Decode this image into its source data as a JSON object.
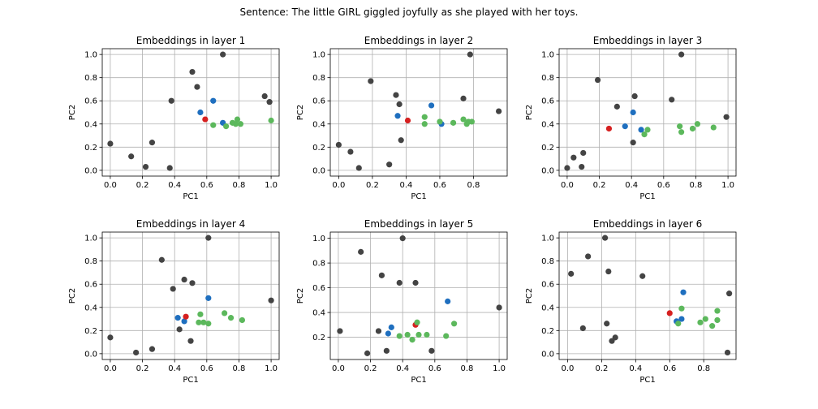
{
  "figure": {
    "suptitle": "Sentence: The little GIRL giggled joyfully as she played with her toys."
  },
  "colors": {
    "other": "#444444",
    "blue": "#1f6fbf",
    "red": "#d62020",
    "green": "#5cb85c"
  },
  "chart_data": [
    {
      "type": "scatter",
      "title": "Embeddings in layer 1",
      "xlabel": "PC1",
      "ylabel": "PC2",
      "xlim": [
        -0.05,
        1.05
      ],
      "ylim": [
        -0.05,
        1.05
      ],
      "xticks": [
        "0.0",
        "0.2",
        "0.4",
        "0.6",
        "0.8",
        "1.0"
      ],
      "yticks": [
        "0.0",
        "0.2",
        "0.4",
        "0.6",
        "0.8",
        "1.0"
      ],
      "grid": true,
      "series": [
        {
          "color": "other",
          "points": [
            [
              0.0,
              0.23
            ],
            [
              0.13,
              0.12
            ],
            [
              0.22,
              0.03
            ],
            [
              0.26,
              0.24
            ],
            [
              0.37,
              0.02
            ],
            [
              0.38,
              0.6
            ],
            [
              0.51,
              0.85
            ],
            [
              0.54,
              0.72
            ],
            [
              0.7,
              1.0
            ],
            [
              0.96,
              0.64
            ],
            [
              0.99,
              0.59
            ]
          ]
        },
        {
          "color": "blue",
          "points": [
            [
              0.56,
              0.5
            ],
            [
              0.64,
              0.6
            ],
            [
              0.7,
              0.41
            ]
          ]
        },
        {
          "color": "red",
          "points": [
            [
              0.59,
              0.44
            ]
          ]
        },
        {
          "color": "green",
          "points": [
            [
              0.64,
              0.39
            ],
            [
              0.72,
              0.38
            ],
            [
              0.76,
              0.41
            ],
            [
              0.78,
              0.4
            ],
            [
              0.79,
              0.44
            ],
            [
              0.81,
              0.4
            ],
            [
              1.0,
              0.43
            ]
          ]
        }
      ]
    },
    {
      "type": "scatter",
      "title": "Embeddings in layer 2",
      "xlabel": "PC1",
      "ylabel": "PC2",
      "xlim": [
        -0.05,
        1.0
      ],
      "ylim": [
        -0.05,
        1.05
      ],
      "xticks": [
        "0.0",
        "0.2",
        "0.4",
        "0.6",
        "0.8"
      ],
      "yticks": [
        "0.0",
        "0.2",
        "0.4",
        "0.6",
        "0.8",
        "1.0"
      ],
      "grid": true,
      "series": [
        {
          "color": "other",
          "points": [
            [
              0.0,
              0.22
            ],
            [
              0.07,
              0.16
            ],
            [
              0.12,
              0.02
            ],
            [
              0.19,
              0.77
            ],
            [
              0.3,
              0.05
            ],
            [
              0.34,
              0.65
            ],
            [
              0.36,
              0.57
            ],
            [
              0.37,
              0.26
            ],
            [
              0.74,
              0.62
            ],
            [
              0.78,
              1.0
            ],
            [
              0.95,
              0.51
            ]
          ]
        },
        {
          "color": "blue",
          "points": [
            [
              0.35,
              0.47
            ],
            [
              0.55,
              0.56
            ],
            [
              0.61,
              0.4
            ]
          ]
        },
        {
          "color": "red",
          "points": [
            [
              0.41,
              0.43
            ]
          ]
        },
        {
          "color": "green",
          "points": [
            [
              0.51,
              0.46
            ],
            [
              0.51,
              0.4
            ],
            [
              0.6,
              0.42
            ],
            [
              0.68,
              0.41
            ],
            [
              0.74,
              0.44
            ],
            [
              0.76,
              0.4
            ],
            [
              0.77,
              0.42
            ],
            [
              0.79,
              0.42
            ]
          ]
        }
      ]
    },
    {
      "type": "scatter",
      "title": "Embeddings in layer 3",
      "xlabel": "PC1",
      "ylabel": "PC2",
      "xlim": [
        -0.05,
        1.05
      ],
      "ylim": [
        -0.05,
        1.05
      ],
      "xticks": [
        "0.0",
        "0.2",
        "0.4",
        "0.6",
        "0.8",
        "1.0"
      ],
      "yticks": [
        "0.0",
        "0.2",
        "0.4",
        "0.6",
        "0.8",
        "1.0"
      ],
      "grid": true,
      "series": [
        {
          "color": "other",
          "points": [
            [
              0.0,
              0.02
            ],
            [
              0.04,
              0.11
            ],
            [
              0.09,
              0.03
            ],
            [
              0.1,
              0.15
            ],
            [
              0.19,
              0.78
            ],
            [
              0.31,
              0.55
            ],
            [
              0.41,
              0.24
            ],
            [
              0.42,
              0.64
            ],
            [
              0.65,
              0.61
            ],
            [
              0.71,
              1.0
            ],
            [
              0.99,
              0.46
            ]
          ]
        },
        {
          "color": "blue",
          "points": [
            [
              0.36,
              0.38
            ],
            [
              0.41,
              0.5
            ],
            [
              0.46,
              0.35
            ]
          ]
        },
        {
          "color": "red",
          "points": [
            [
              0.26,
              0.36
            ]
          ]
        },
        {
          "color": "green",
          "points": [
            [
              0.48,
              0.31
            ],
            [
              0.5,
              0.35
            ],
            [
              0.7,
              0.38
            ],
            [
              0.71,
              0.33
            ],
            [
              0.78,
              0.36
            ],
            [
              0.81,
              0.4
            ],
            [
              0.91,
              0.37
            ]
          ]
        }
      ]
    },
    {
      "type": "scatter",
      "title": "Embeddings in layer 4",
      "xlabel": "PC1",
      "ylabel": "PC2",
      "xlim": [
        -0.05,
        1.05
      ],
      "ylim": [
        -0.05,
        1.05
      ],
      "xticks": [
        "0.0",
        "0.2",
        "0.4",
        "0.6",
        "0.8",
        "1.0"
      ],
      "yticks": [
        "0.0",
        "0.2",
        "0.4",
        "0.6",
        "0.8",
        "1.0"
      ],
      "grid": true,
      "series": [
        {
          "color": "other",
          "points": [
            [
              0.0,
              0.14
            ],
            [
              0.16,
              0.01
            ],
            [
              0.26,
              0.04
            ],
            [
              0.32,
              0.81
            ],
            [
              0.39,
              0.56
            ],
            [
              0.43,
              0.21
            ],
            [
              0.46,
              0.64
            ],
            [
              0.5,
              0.11
            ],
            [
              0.51,
              0.61
            ],
            [
              0.61,
              1.0
            ],
            [
              1.0,
              0.46
            ]
          ]
        },
        {
          "color": "blue",
          "points": [
            [
              0.42,
              0.31
            ],
            [
              0.46,
              0.28
            ],
            [
              0.61,
              0.48
            ]
          ]
        },
        {
          "color": "red",
          "points": [
            [
              0.47,
              0.32
            ]
          ]
        },
        {
          "color": "green",
          "points": [
            [
              0.55,
              0.27
            ],
            [
              0.56,
              0.34
            ],
            [
              0.58,
              0.27
            ],
            [
              0.61,
              0.26
            ],
            [
              0.71,
              0.35
            ],
            [
              0.75,
              0.31
            ],
            [
              0.82,
              0.29
            ]
          ]
        }
      ]
    },
    {
      "type": "scatter",
      "title": "Embeddings in layer 5",
      "xlabel": "PC1",
      "ylabel": "PC2",
      "xlim": [
        -0.05,
        1.05
      ],
      "ylim": [
        0.02,
        1.05
      ],
      "xticks": [
        "0.0",
        "0.2",
        "0.4",
        "0.6",
        "0.8",
        "1.0"
      ],
      "yticks": [
        "0.2",
        "0.4",
        "0.6",
        "0.8",
        "1.0"
      ],
      "grid": true,
      "series": [
        {
          "color": "other",
          "points": [
            [
              0.01,
              0.25
            ],
            [
              0.14,
              0.89
            ],
            [
              0.18,
              0.07
            ],
            [
              0.25,
              0.25
            ],
            [
              0.27,
              0.7
            ],
            [
              0.3,
              0.09
            ],
            [
              0.38,
              0.64
            ],
            [
              0.4,
              1.0
            ],
            [
              0.48,
              0.64
            ],
            [
              0.58,
              0.09
            ],
            [
              1.0,
              0.44
            ]
          ]
        },
        {
          "color": "blue",
          "points": [
            [
              0.31,
              0.23
            ],
            [
              0.33,
              0.28
            ],
            [
              0.68,
              0.49
            ]
          ]
        },
        {
          "color": "red",
          "points": [
            [
              0.48,
              0.3
            ]
          ]
        },
        {
          "color": "green",
          "points": [
            [
              0.38,
              0.21
            ],
            [
              0.43,
              0.22
            ],
            [
              0.46,
              0.18
            ],
            [
              0.49,
              0.32
            ],
            [
              0.5,
              0.22
            ],
            [
              0.55,
              0.22
            ],
            [
              0.67,
              0.21
            ],
            [
              0.72,
              0.31
            ]
          ]
        }
      ]
    },
    {
      "type": "scatter",
      "title": "Embeddings in layer 6",
      "xlabel": "PC1",
      "ylabel": "PC2",
      "xlim": [
        -0.05,
        0.99
      ],
      "ylim": [
        -0.05,
        1.05
      ],
      "xticks": [
        "0.0",
        "0.2",
        "0.4",
        "0.6",
        "0.8"
      ],
      "yticks": [
        "0.0",
        "0.2",
        "0.4",
        "0.6",
        "0.8",
        "1.0"
      ],
      "grid": true,
      "series": [
        {
          "color": "other",
          "points": [
            [
              0.02,
              0.69
            ],
            [
              0.09,
              0.22
            ],
            [
              0.12,
              0.84
            ],
            [
              0.22,
              1.0
            ],
            [
              0.23,
              0.26
            ],
            [
              0.24,
              0.71
            ],
            [
              0.26,
              0.11
            ],
            [
              0.28,
              0.14
            ],
            [
              0.44,
              0.67
            ],
            [
              0.94,
              0.01
            ],
            [
              0.95,
              0.52
            ]
          ]
        },
        {
          "color": "blue",
          "points": [
            [
              0.64,
              0.28
            ],
            [
              0.67,
              0.3
            ],
            [
              0.68,
              0.53
            ]
          ]
        },
        {
          "color": "red",
          "points": [
            [
              0.6,
              0.35
            ]
          ]
        },
        {
          "color": "green",
          "points": [
            [
              0.65,
              0.26
            ],
            [
              0.67,
              0.39
            ],
            [
              0.78,
              0.27
            ],
            [
              0.81,
              0.3
            ],
            [
              0.85,
              0.24
            ],
            [
              0.88,
              0.37
            ],
            [
              0.88,
              0.29
            ]
          ]
        }
      ]
    }
  ]
}
